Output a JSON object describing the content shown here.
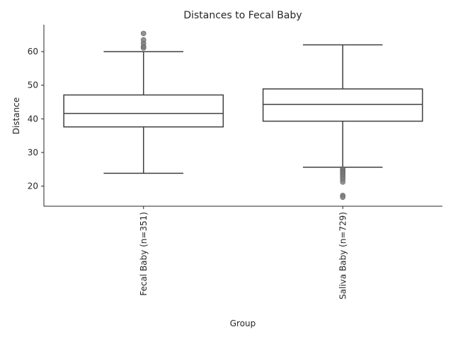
{
  "chart_data": {
    "type": "box",
    "title": "Distances to Fecal Baby",
    "xlabel": "Group",
    "ylabel": "Distance",
    "ylim": [
      14,
      68
    ],
    "yticks": [
      20,
      30,
      40,
      50,
      60
    ],
    "grid": false,
    "categories": [
      "Fecal Baby (n=351)",
      "Saliva Baby (n=729)"
    ],
    "boxes": [
      {
        "category": "Fecal Baby (n=351)",
        "whisker_low": 23.8,
        "q1": 37.6,
        "median": 41.6,
        "q3": 47.1,
        "whisker_high": 60.0,
        "outliers": [
          61.1,
          61.6,
          62.5,
          63.5,
          65.4
        ]
      },
      {
        "category": "Saliva Baby (n=729)",
        "whisker_low": 25.6,
        "q1": 39.3,
        "median": 44.3,
        "q3": 48.9,
        "whisker_high": 62.0,
        "outliers": [
          25.1,
          24.8,
          24.4,
          24.0,
          23.6,
          23.1,
          22.6,
          22.0,
          21.2,
          17.2,
          16.7
        ]
      }
    ],
    "colors": {
      "box_edge": "#3f3f3f",
      "box_fill": "#ffffff",
      "outlier": "#7f7f7f",
      "text": "#262626"
    }
  }
}
